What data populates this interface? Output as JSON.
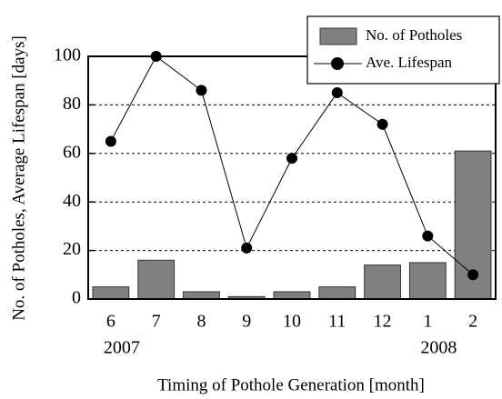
{
  "chart_data": {
    "type": "bar",
    "xlabel": "Timing of Pothole Generation [month]",
    "ylabel": "No. of Potholes, Average Lifespan [days]",
    "categories": [
      "6",
      "7",
      "8",
      "9",
      "10",
      "11",
      "12",
      "1",
      "2"
    ],
    "year_labels": [
      "2007",
      null,
      null,
      null,
      null,
      null,
      null,
      "2008",
      null
    ],
    "series": [
      {
        "name": "No. of Potholes",
        "type": "bar",
        "color": "#808080",
        "values": [
          5,
          16,
          3,
          1,
          3,
          5,
          14,
          15,
          61
        ]
      },
      {
        "name": "Ave. Lifespan",
        "type": "line",
        "color": "#000000",
        "values": [
          65,
          100,
          86,
          21,
          58,
          85,
          72,
          26,
          10
        ]
      }
    ],
    "ylim": [
      0,
      100
    ],
    "yticks": [
      0,
      20,
      40,
      60,
      80,
      100
    ],
    "grid": true,
    "legend": "upper right"
  }
}
